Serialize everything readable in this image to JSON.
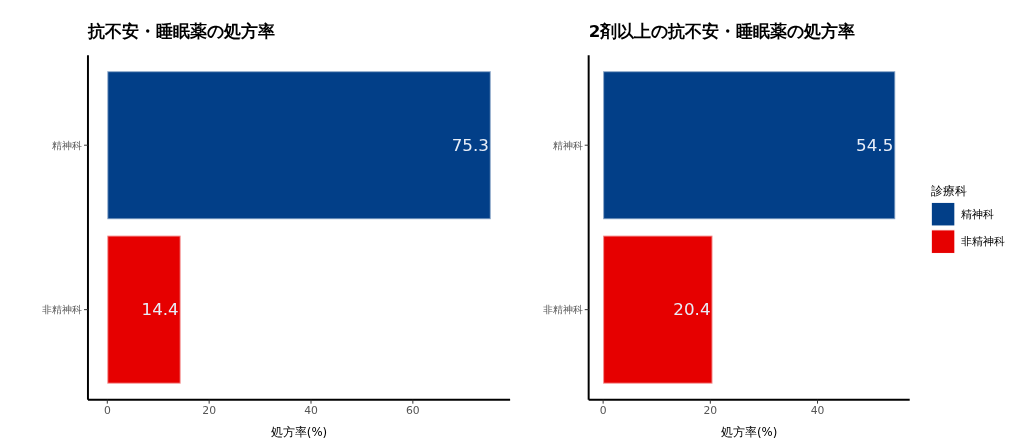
{
  "chart_data": [
    {
      "type": "bar",
      "orientation": "horizontal",
      "title": "抗不安・睡眠薬の処方率",
      "xlabel": "処方率(%)",
      "categories": [
        "精神科",
        "非精神科"
      ],
      "series": [
        {
          "color": "#023f88",
          "values": [
            75.3,
            null
          ]
        },
        {
          "color": "#e60000",
          "values": [
            null,
            14.4
          ]
        }
      ],
      "xlim": [
        -3.8,
        79.1
      ],
      "xticks": [
        0,
        20,
        40,
        60
      ],
      "data_labels": true
    },
    {
      "type": "bar",
      "orientation": "horizontal",
      "title": "2剤以上の抗不安・睡眠薬の処方率",
      "xlabel": "処方率(%)",
      "categories": [
        "精神科",
        "非精神科"
      ],
      "series": [
        {
          "name": "精神科",
          "color": "#023f88",
          "values": [
            54.5,
            null
          ]
        },
        {
          "name": "非精神科",
          "color": "#e60000",
          "values": [
            null,
            20.4
          ]
        }
      ],
      "xlim": [
        -2.7,
        57.2
      ],
      "xticks": [
        0,
        20,
        40
      ],
      "data_labels": true,
      "legend": "right",
      "legend_title": "診療科"
    }
  ]
}
